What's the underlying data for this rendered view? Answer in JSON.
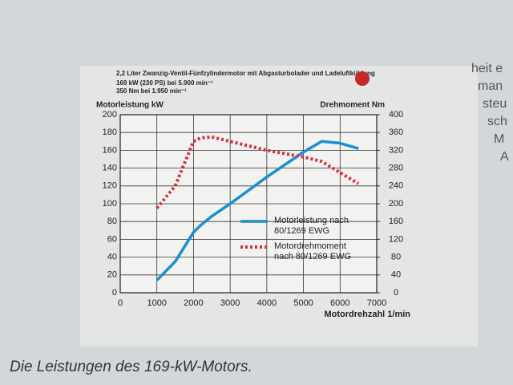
{
  "chart_data": {
    "type": "line",
    "title": "2,2 Liter Zwanzig-Ventil-Fünfzylindermotor mit Abgasturbolader und Ladeluftkühlung",
    "subtitle": [
      "169 kW (230 PS) bei 5.900 min⁻¹",
      "350 Nm bei 1.950 min⁻¹"
    ],
    "ylabel": "Motorleistung kW",
    "y2label": "Drehmoment Nm",
    "xlabel": "Motordrehzahl 1/min",
    "x": [
      1000,
      1500,
      2000,
      2200,
      2500,
      3000,
      4000,
      5000,
      5500,
      6000,
      6500
    ],
    "series": [
      {
        "name": "Motorleistung nach 80/1269 EWG",
        "color": "#1a8fd0",
        "style": "solid",
        "axis": "y",
        "values": [
          14,
          35,
          68,
          76,
          86,
          100,
          130,
          158,
          170,
          168,
          162
        ]
      },
      {
        "name": "Motordrehmoment nach 80/1269 EWG",
        "color": "#d8323a",
        "style": "dotted",
        "axis": "y2",
        "values": [
          190,
          240,
          340,
          348,
          350,
          340,
          320,
          305,
          295,
          270,
          245
        ]
      }
    ],
    "xlim": [
      0,
      7000
    ],
    "xticks": [
      0,
      1000,
      2000,
      3000,
      4000,
      5000,
      6000,
      7000
    ],
    "ylim": [
      0,
      200
    ],
    "yticks": [
      0,
      20,
      40,
      60,
      80,
      100,
      120,
      140,
      160,
      180,
      200
    ],
    "y2lim": [
      0,
      400
    ],
    "y2ticks": [
      0,
      40,
      80,
      120,
      160,
      200,
      240,
      280,
      320,
      360,
      400
    ],
    "grid": true
  },
  "caption": "Die Leistungen des 169-kW-Motors.",
  "side_text": [
    "heit e",
    "man",
    "steu",
    "sch",
    "M",
    "A"
  ]
}
